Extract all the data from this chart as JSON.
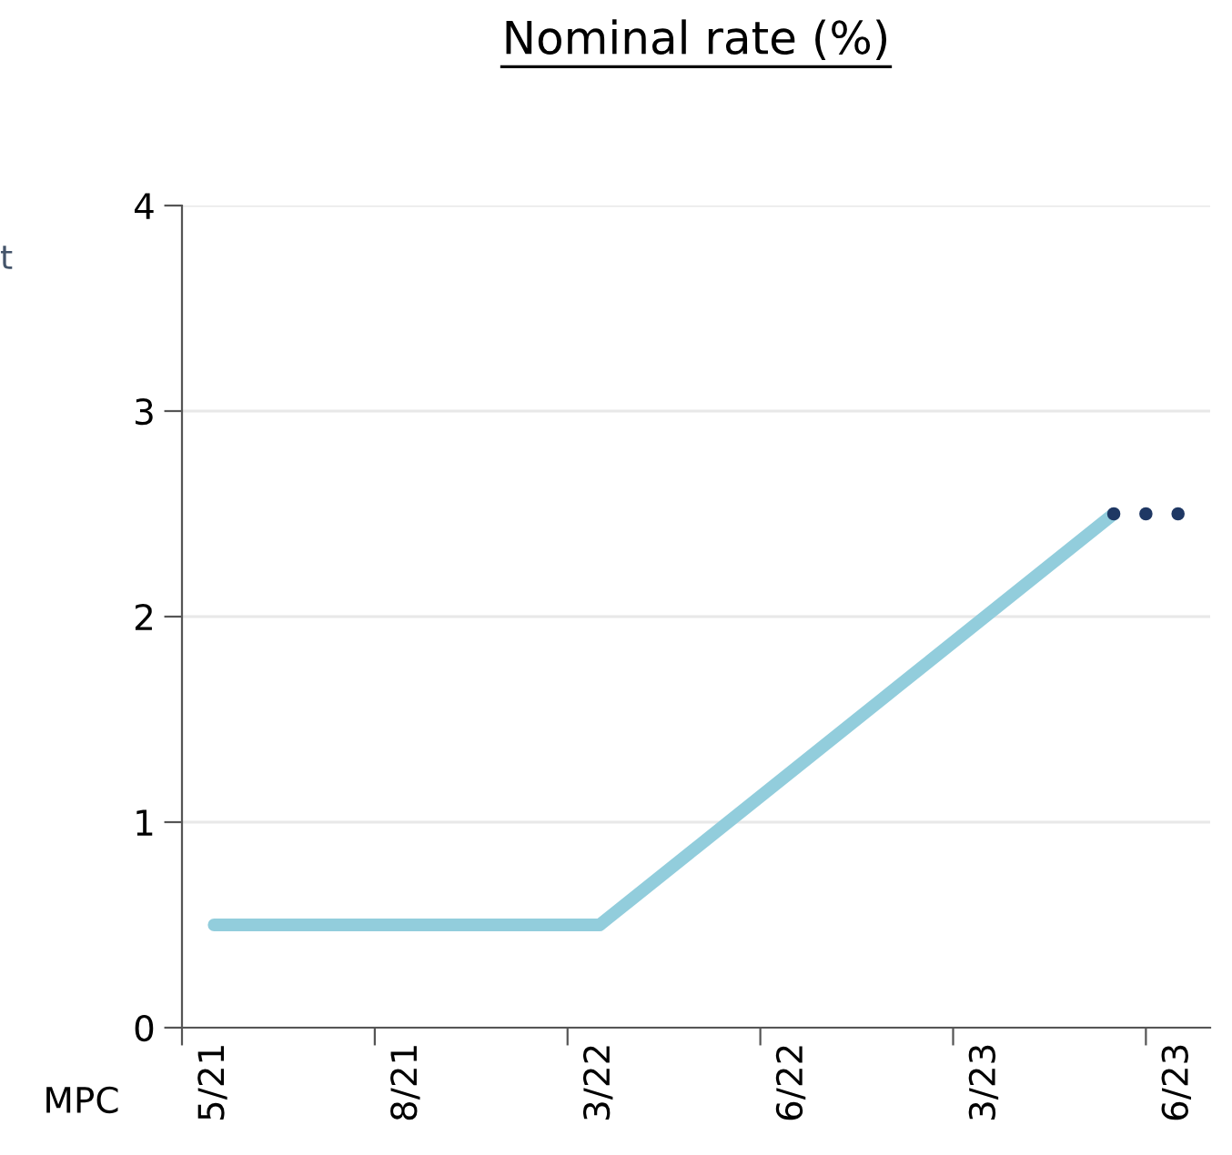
{
  "chart_data": {
    "type": "line",
    "title": "Nominal rate (%)",
    "xlabel": "MPC",
    "annotations": [
      "t"
    ],
    "categories": [
      "5/21",
      null,
      null,
      null,
      null,
      null,
      "8/21",
      null,
      null,
      null,
      null,
      null,
      "3/22",
      null,
      null,
      null,
      null,
      null,
      "6/22",
      null,
      null,
      null,
      null,
      null,
      "3/23",
      null,
      null,
      null,
      null,
      null,
      "6/23"
    ],
    "series": [
      {
        "color": "#92cddc",
        "values": [
          0.5,
          0.5,
          0.5,
          0.5,
          0.5,
          0.5,
          0.5,
          0.5,
          0.5,
          0.5,
          0.5,
          0.5,
          0.5,
          0.625,
          0.75,
          0.875,
          1.0,
          1.125,
          1.25,
          1.375,
          1.5,
          1.625,
          1.75,
          1.875,
          2.0,
          2.125,
          2.25,
          2.375,
          2.5,
          null,
          null
        ]
      },
      {
        "type": "scatter",
        "color": "#1f3864",
        "values": [
          null,
          null,
          null,
          null,
          null,
          null,
          null,
          null,
          null,
          null,
          null,
          null,
          null,
          null,
          null,
          null,
          null,
          null,
          null,
          null,
          null,
          null,
          null,
          null,
          null,
          null,
          null,
          null,
          2.5,
          2.5,
          2.5
        ]
      }
    ],
    "ylim": [
      0,
      4
    ],
    "yticks": [
      0,
      1,
      2,
      3,
      4
    ],
    "grid": "y"
  }
}
